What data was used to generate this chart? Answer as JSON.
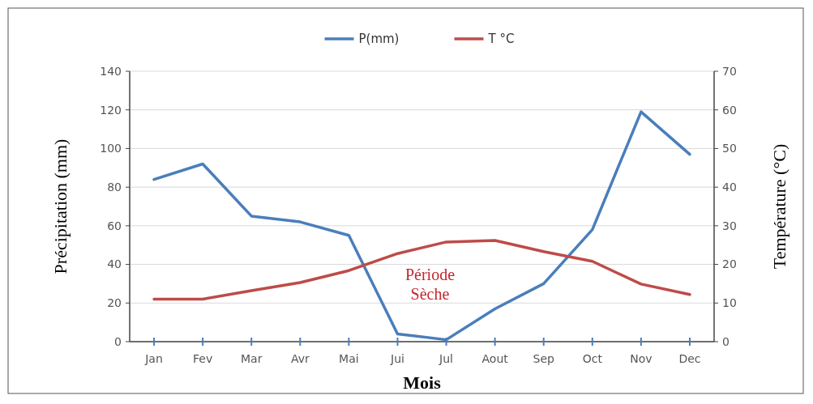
{
  "chart_data": {
    "type": "line",
    "xlabel": "Mois",
    "ylabel": "Précipitation  (mm)",
    "y2label": "Température  (°C)",
    "categories": [
      "Jan",
      "Fev",
      "Mar",
      "Avr",
      "Mai",
      "Jui",
      "Jul",
      "Aout",
      "Sep",
      "Oct",
      "Nov",
      "Dec"
    ],
    "series": [
      {
        "name": "P(mm)",
        "color": "#4a7ebb",
        "values": [
          84,
          92,
          65,
          62,
          55,
          4,
          1,
          17,
          30,
          58,
          119,
          97
        ]
      },
      {
        "name": "T °C",
        "color": "#be4b48",
        "axis": "y2",
        "values": [
          11,
          11,
          13.2,
          15.3,
          18.4,
          22.8,
          25.8,
          26.2,
          23.3,
          20.8,
          14.9,
          12.2
        ]
      }
    ],
    "ylim": [
      0,
      140
    ],
    "yticks": [
      0,
      20,
      40,
      60,
      80,
      100,
      120,
      140
    ],
    "y2lim": [
      0,
      70
    ],
    "y2ticks": [
      0,
      10,
      20,
      30,
      40,
      50,
      60,
      70
    ],
    "grid": "y",
    "legend": "top",
    "marker": "none",
    "line_style": "solid",
    "annotations": [
      "Période\nSèche"
    ]
  }
}
